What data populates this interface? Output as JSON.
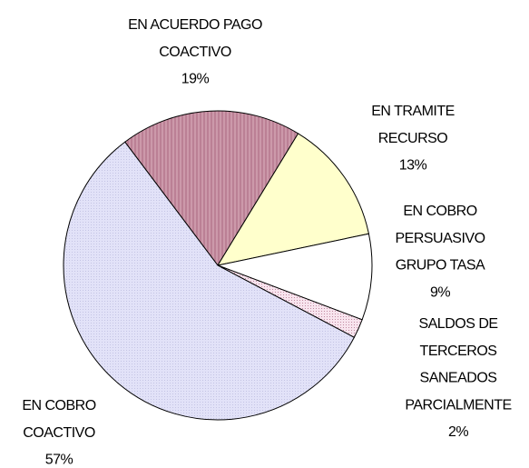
{
  "chart_data": {
    "type": "pie",
    "categories": [
      [
        "EN ACUERDO PAGO",
        "COACTIVO"
      ],
      [
        "EN TRAMITE",
        "RECURSO"
      ],
      [
        "EN COBRO",
        "PERSUASIVO",
        "GRUPO TASA"
      ],
      [
        "SALDOS DE",
        "TERCEROS",
        "SANEADOS",
        "PARCIALMENTE"
      ],
      [
        "EN COBRO",
        "COACTIVO"
      ]
    ],
    "values": [
      19,
      13,
      9,
      2,
      57
    ],
    "value_labels": [
      "19%",
      "13%",
      "9%",
      "2%",
      "57%"
    ],
    "colors": [
      "#cc99aa",
      "#ffffcc",
      "#ffffff",
      "#f4d6e4",
      "#dedef6"
    ]
  }
}
